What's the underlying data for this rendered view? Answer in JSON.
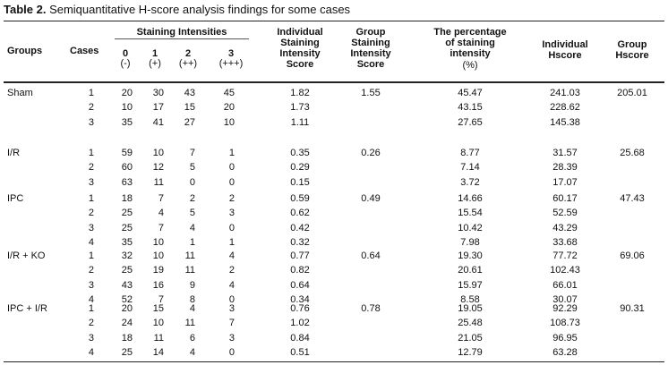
{
  "caption": {
    "label": "Table 2.",
    "text": " Semiquantitative H-score analysis findings for some cases"
  },
  "header": {
    "groups": "Groups",
    "cases": "Cases",
    "staining_intensities": "Staining Intensities",
    "intensity_levels": [
      {
        "num": "0",
        "sign": "(-)"
      },
      {
        "num": "1",
        "sign": "(+)"
      },
      {
        "num": "2",
        "sign": "(++)"
      },
      {
        "num": "3",
        "sign": "(+++)"
      }
    ],
    "individual_staining": [
      "Individual",
      "Staining",
      "Intensity",
      "Score"
    ],
    "group_staining": [
      "Group",
      "Staining",
      "Intensity",
      "Score"
    ],
    "percentage": [
      "The percentage",
      "of staining",
      "intensity",
      "(%)"
    ],
    "individual_hscore": [
      "Individual",
      "Hscore"
    ],
    "group_hscore": [
      "Group",
      "Hscore"
    ]
  },
  "groups": [
    {
      "name": "Sham",
      "group_score": "1.55",
      "group_hscore": "205.01",
      "rows": [
        {
          "case": "1",
          "i0": "20",
          "i1": "30",
          "i2": "43",
          "i3": "45",
          "indiv": "1.82",
          "pct": "45.47",
          "hscore": "241.03"
        },
        {
          "case": "2",
          "i0": "10",
          "i1": "17",
          "i2": "15",
          "i3": "20",
          "indiv": "1.73",
          "pct": "43.15",
          "hscore": "228.62"
        },
        {
          "case": "3",
          "i0": "35",
          "i1": "41",
          "i2": "27",
          "i3": "10",
          "indiv": "1.11",
          "pct": "27.65",
          "hscore": "145.38"
        }
      ]
    },
    {
      "name": "I/R",
      "group_score": "0.26",
      "group_hscore": "25.68",
      "rows": [
        {
          "case": "1",
          "i0": "59",
          "i1": "10",
          "i2": "7",
          "i3": "1",
          "indiv": "0.35",
          "pct": "8.77",
          "hscore": "31.57"
        },
        {
          "case": "2",
          "i0": "60",
          "i1": "12",
          "i2": "5",
          "i3": "0",
          "indiv": "0.29",
          "pct": "7.14",
          "hscore": "28.39"
        },
        {
          "case": "3",
          "i0": "63",
          "i1": "11",
          "i2": "0",
          "i3": "0",
          "indiv": "0.15",
          "pct": "3.72",
          "hscore": "17.07"
        }
      ]
    },
    {
      "name": "IPC",
      "group_score": "0.49",
      "group_hscore": "47.43",
      "rows": [
        {
          "case": "1",
          "i0": "18",
          "i1": "7",
          "i2": "2",
          "i3": "2",
          "indiv": "0.59",
          "pct": "14.66",
          "hscore": "60.17"
        },
        {
          "case": "2",
          "i0": "25",
          "i1": "4",
          "i2": "5",
          "i3": "3",
          "indiv": "0.62",
          "pct": "15.54",
          "hscore": "52.59"
        },
        {
          "case": "3",
          "i0": "25",
          "i1": "7",
          "i2": "4",
          "i3": "0",
          "indiv": "0.42",
          "pct": "10.42",
          "hscore": "43.29"
        },
        {
          "case": "4",
          "i0": "35",
          "i1": "10",
          "i2": "1",
          "i3": "1",
          "indiv": "0.32",
          "pct": "7.98",
          "hscore": "33.68"
        }
      ]
    },
    {
      "name": "I/R + KO",
      "group_score": "0.64",
      "group_hscore": "69.06",
      "rows": [
        {
          "case": "1",
          "i0": "32",
          "i1": "10",
          "i2": "11",
          "i3": "4",
          "indiv": "0.77",
          "pct": "19.30",
          "hscore": "77.72"
        },
        {
          "case": "2",
          "i0": "25",
          "i1": "19",
          "i2": "11",
          "i3": "2",
          "indiv": "0.82",
          "pct": "20.61",
          "hscore": "102.43"
        },
        {
          "case": "3",
          "i0": "43",
          "i1": "16",
          "i2": "9",
          "i3": "4",
          "indiv": "0.64",
          "pct": "15.97",
          "hscore": "66.01"
        },
        {
          "case": "4",
          "i0": "52",
          "i1": "7",
          "i2": "8",
          "i3": "0",
          "indiv": "0.34",
          "pct": "8.58",
          "hscore": "30.07"
        }
      ]
    },
    {
      "name": "IPC + I/R",
      "group_score": "0.78",
      "group_hscore": "90.31",
      "rows": [
        {
          "case": "1",
          "i0": "20",
          "i1": "15",
          "i2": "4",
          "i3": "3",
          "indiv": "0.76",
          "pct": "19.05",
          "hscore": "92.29"
        },
        {
          "case": "2",
          "i0": "24",
          "i1": "10",
          "i2": "11",
          "i3": "7",
          "indiv": "1.02",
          "pct": "25.48",
          "hscore": "108.73"
        },
        {
          "case": "3",
          "i0": "18",
          "i1": "11",
          "i2": "6",
          "i3": "3",
          "indiv": "0.84",
          "pct": "21.05",
          "hscore": "96.95"
        },
        {
          "case": "4",
          "i0": "25",
          "i1": "14",
          "i2": "4",
          "i3": "0",
          "indiv": "0.51",
          "pct": "12.79",
          "hscore": "63.28"
        }
      ]
    }
  ]
}
